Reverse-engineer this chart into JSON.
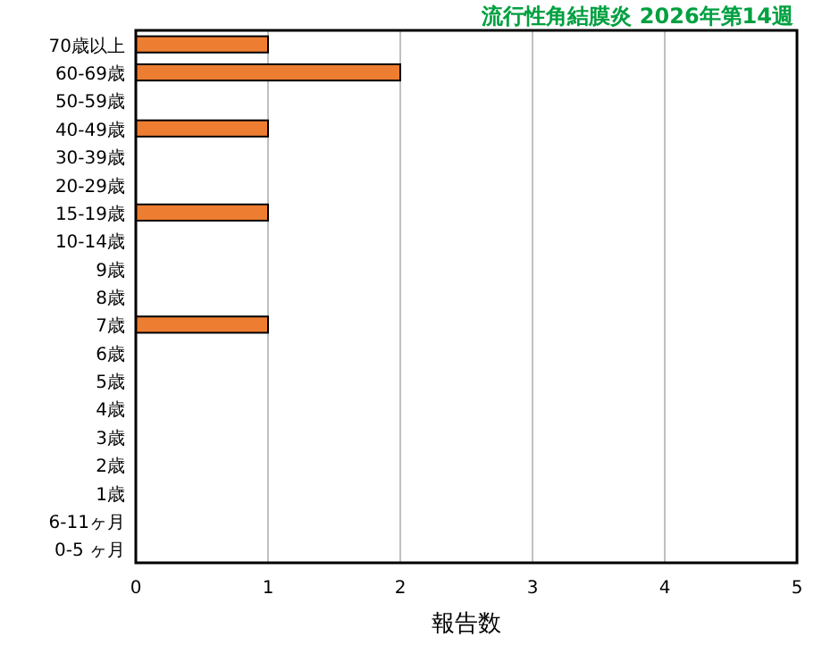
{
  "chart_data": {
    "type": "bar",
    "orientation": "horizontal",
    "title": "流行性角結膜炎 2026年第14週",
    "xlabel": "報告数",
    "categories": [
      "70歳以上",
      "60-69歳",
      "50-59歳",
      "40-49歳",
      "30-39歳",
      "20-29歳",
      "15-19歳",
      "10-14歳",
      "9歳",
      "8歳",
      "7歳",
      "6歳",
      "5歳",
      "4歳",
      "3歳",
      "2歳",
      "1歳",
      "6-11ヶ月",
      "0-5 ヶ月"
    ],
    "values": [
      1,
      2,
      0,
      1,
      0,
      0,
      1,
      0,
      0,
      0,
      1,
      0,
      0,
      0,
      0,
      0,
      0,
      0,
      0
    ],
    "color": "#ed7d31",
    "xlim": [
      0,
      5
    ],
    "xticks": [
      0,
      1,
      2,
      3,
      4,
      5
    ],
    "grid": "x"
  }
}
